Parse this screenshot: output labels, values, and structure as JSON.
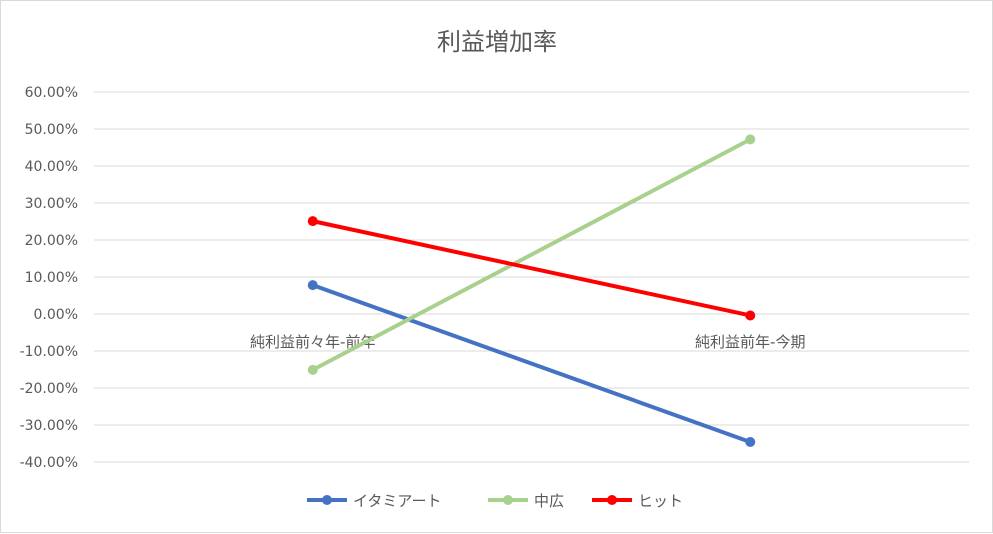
{
  "chart_data": {
    "type": "line",
    "title": "利益増加率",
    "categories": [
      "純利益前々年-前年",
      "純利益前年-今期"
    ],
    "ylim": [
      -40,
      60
    ],
    "ytick_step": 10,
    "ytick_labels": [
      "60.00%",
      "50.00%",
      "40.00%",
      "30.00%",
      "20.00%",
      "10.00%",
      "0.00%",
      "-10.00%",
      "-20.00%",
      "-30.00%",
      "-40.00%"
    ],
    "grid": true,
    "legend_position": "bottom",
    "series": [
      {
        "name": "イタミアート",
        "values": [
          7.8,
          -34.6
        ],
        "color": "#4472c4"
      },
      {
        "name": "中広",
        "values": [
          -15.1,
          47.2
        ],
        "color": "#a9d18e"
      },
      {
        "name": "ヒット",
        "values": [
          25.1,
          -0.4
        ],
        "color": "#ff0000"
      }
    ]
  }
}
